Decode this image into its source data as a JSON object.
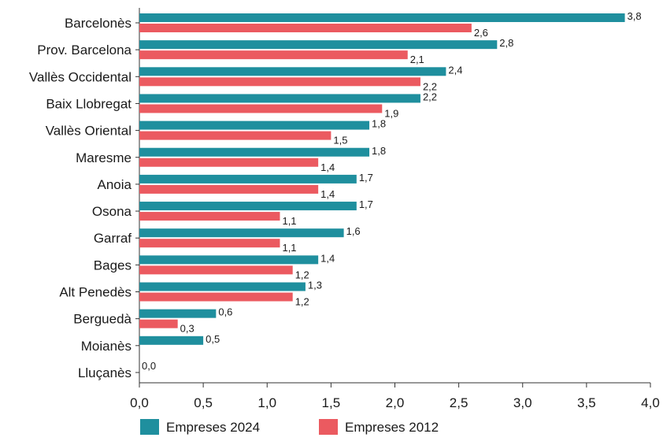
{
  "chart_data": {
    "type": "bar",
    "orientation": "horizontal",
    "categories": [
      "Barcelonès",
      "Prov. Barcelona",
      "Vallès Occidental",
      "Baix Llobregat",
      "Vallès Oriental",
      "Maresme",
      "Anoia",
      "Osona",
      "Garraf",
      "Bages",
      "Alt Penedès",
      "Berguedà",
      "Moianès",
      "Lluçanès"
    ],
    "series": [
      {
        "name": "Empreses 2024",
        "color": "#1f8f9e",
        "values": [
          3.8,
          2.8,
          2.4,
          2.2,
          1.8,
          1.8,
          1.7,
          1.7,
          1.6,
          1.4,
          1.3,
          0.6,
          0.5,
          0.0
        ],
        "labels": [
          "3,8",
          "2,8",
          "2,4",
          "2,2",
          "1,8",
          "1,8",
          "1,7",
          "1,7",
          "1,6",
          "1,4",
          "1,3",
          "0,6",
          "0,5",
          "0,0"
        ]
      },
      {
        "name": "Empreses 2012",
        "color": "#eb5a60",
        "values": [
          2.6,
          2.1,
          2.2,
          1.9,
          1.5,
          1.4,
          1.4,
          1.1,
          1.1,
          1.2,
          1.2,
          0.3,
          null,
          null
        ],
        "labels": [
          "2,6",
          "2,1",
          "2,2",
          "1,9",
          "1,5",
          "1,4",
          "1,4",
          "1,1",
          "1,1",
          "1,2",
          "1,2",
          "0,3",
          "",
          ""
        ]
      }
    ],
    "xlim": [
      0,
      4.0
    ],
    "xticks": [
      0,
      0.5,
      1.0,
      1.5,
      2.0,
      2.5,
      3.0,
      3.5,
      4.0
    ],
    "xtick_labels": [
      "0,0",
      "0,5",
      "1,0",
      "1,5",
      "2,0",
      "2,5",
      "3,0",
      "3,5",
      "4,0"
    ],
    "grid": false,
    "legend_position": "bottom-left",
    "title": "",
    "xlabel": "",
    "ylabel": ""
  }
}
